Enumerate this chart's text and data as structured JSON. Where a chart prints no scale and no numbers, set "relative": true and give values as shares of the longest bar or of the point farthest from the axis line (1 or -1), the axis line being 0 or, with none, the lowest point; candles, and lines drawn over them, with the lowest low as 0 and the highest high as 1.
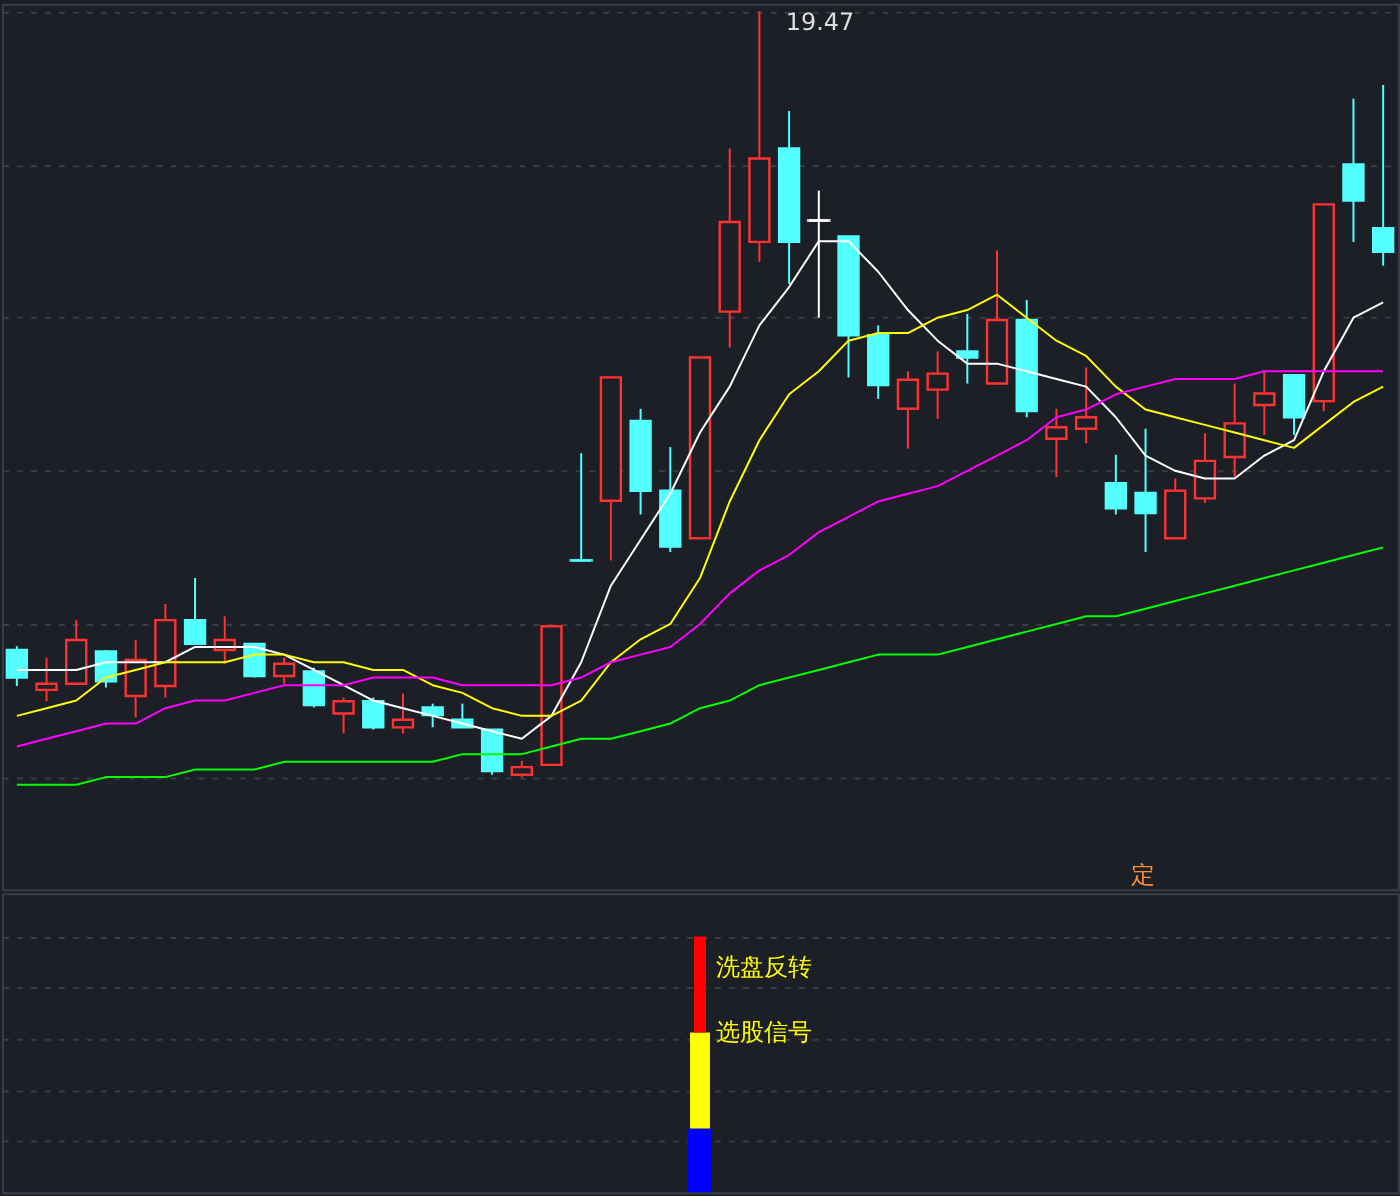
{
  "chart_data": [
    {
      "type": "candlestick",
      "relative": true,
      "grid": true,
      "categories": [
        null,
        null,
        null,
        null,
        null,
        null,
        null,
        null,
        null,
        null,
        null,
        null,
        null,
        null,
        null,
        null,
        null,
        null,
        null,
        null,
        null,
        null,
        null,
        null,
        null,
        null,
        null,
        null,
        null,
        null,
        null,
        null,
        null,
        null,
        null,
        null,
        null,
        null,
        null,
        null,
        null,
        null,
        null,
        null,
        null,
        null,
        null
      ],
      "ohlc": [
        [
          0.166,
          0.171,
          0.119,
          0.13
        ],
        [
          0.114,
          0.156,
          0.099,
          0.122
        ],
        [
          0.122,
          0.205,
          0.122,
          0.179
        ],
        [
          0.164,
          0.166,
          0.117,
          0.125
        ],
        [
          0.106,
          0.179,
          0.078,
          0.153
        ],
        [
          0.119,
          0.226,
          0.104,
          0.205
        ],
        [
          0.205,
          0.26,
          0.174,
          0.174
        ],
        [
          0.166,
          0.21,
          0.148,
          0.179
        ],
        [
          0.174,
          0.174,
          0.13,
          0.132
        ],
        [
          0.132,
          0.156,
          0.122,
          0.148
        ],
        [
          0.138,
          0.143,
          0.091,
          0.094
        ],
        [
          0.083,
          0.104,
          0.057,
          0.099
        ],
        [
          0.099,
          0.104,
          0.062,
          0.065
        ],
        [
          0.065,
          0.109,
          0.057,
          0.075
        ],
        [
          0.091,
          0.096,
          0.065,
          0.081
        ],
        [
          0.075,
          0.096,
          0.065,
          0.065
        ],
        [
          0.062,
          0.062,
          0.003,
          0.008
        ],
        [
          0.003,
          0.021,
          0,
          0.013
        ],
        [
          0.016,
          0.197,
          0.016,
          0.197
        ],
        [
          0.283,
          0.423,
          0.283,
          0.283
        ],
        [
          0.361,
          0.522,
          0.283,
          0.522
        ],
        [
          0.465,
          0.481,
          0.343,
          0.374
        ],
        [
          0.374,
          0.431,
          0.294,
          0.301
        ],
        [
          0.312,
          0.548,
          0.312,
          0.548
        ],
        [
          0.608,
          0.821,
          0.561,
          0.725
        ],
        [
          0.699,
          1,
          0.673,
          0.808
        ],
        [
          0.821,
          0.87,
          0.644,
          0.699
        ],
        [
          0.727,
          0.766,
          0.6,
          0.727
        ],
        [
          0.706,
          0.706,
          0.522,
          0.577
        ],
        [
          0.577,
          0.59,
          0.494,
          0.512
        ],
        [
          0.481,
          0.53,
          0.429,
          0.519
        ],
        [
          0.506,
          0.556,
          0.468,
          0.527
        ],
        [
          0.556,
          0.605,
          0.514,
          0.548
        ],
        [
          0.514,
          0.688,
          0.514,
          0.597
        ],
        [
          0.597,
          0.623,
          0.47,
          0.478
        ],
        [
          0.442,
          0.481,
          0.392,
          0.457
        ],
        [
          0.455,
          0.535,
          0.436,
          0.47
        ],
        [
          0.384,
          0.421,
          0.343,
          0.351
        ],
        [
          0.371,
          0.455,
          0.294,
          0.345
        ],
        [
          0.312,
          0.39,
          0.312,
          0.374
        ],
        [
          0.364,
          0.449,
          0.358,
          0.413
        ],
        [
          0.418,
          0.514,
          0.392,
          0.462
        ],
        [
          0.486,
          0.532,
          0.447,
          0.501
        ],
        [
          0.525,
          0.525,
          0.447,
          0.47
        ],
        [
          0.491,
          0.748,
          0.478,
          0.748
        ],
        [
          0.8,
          0.886,
          0.699,
          0.753
        ],
        [
          0.717,
          0.904,
          0.668,
          0.686
        ]
      ],
      "colors": [
        "#54ffff",
        "#ff3232",
        "#ff3232",
        "#54ffff",
        "#ff3232",
        "#ff3232",
        "#54ffff",
        "#ff3232",
        "#54ffff",
        "#ff3232",
        "#54ffff",
        "#ff3232",
        "#54ffff",
        "#ff3232",
        "#54ffff",
        "#54ffff",
        "#54ffff",
        "#ff3232",
        "#ff3232",
        "#54ffff",
        "#ff3232",
        "#54ffff",
        "#54ffff",
        "#ff3232",
        "#ff3232",
        "#ff3232",
        "#54ffff",
        "#ffffff",
        "#54ffff",
        "#54ffff",
        "#ff3232",
        "#ff3232",
        "#54ffff",
        "#ff3232",
        "#54ffff",
        "#ff3232",
        "#ff3232",
        "#54ffff",
        "#54ffff",
        "#ff3232",
        "#ff3232",
        "#ff3232",
        "#ff3232",
        "#54ffff",
        "#ff3232",
        "#54ffff",
        "#54ffff"
      ],
      "series": [
        {
          "type": "line",
          "color": "#ffffff",
          "values": [
            0.14,
            0.14,
            0.14,
            0.15,
            0.15,
            0.15,
            0.17,
            0.17,
            0.17,
            0.16,
            0.14,
            0.12,
            0.1,
            0.09,
            0.08,
            0.07,
            0.06,
            0.05,
            0.08,
            0.15,
            0.25,
            0.31,
            0.37,
            0.45,
            0.51,
            0.59,
            0.64,
            0.7,
            0.7,
            0.66,
            0.61,
            0.57,
            0.54,
            0.54,
            0.53,
            0.52,
            0.51,
            0.47,
            0.42,
            0.4,
            0.39,
            0.39,
            0.42,
            0.44,
            0.53,
            0.6,
            0.62
          ]
        },
        {
          "type": "line",
          "color": "#ffff00",
          "values": [
            0.08,
            0.09,
            0.1,
            0.13,
            0.14,
            0.15,
            0.15,
            0.15,
            0.16,
            0.16,
            0.15,
            0.15,
            0.14,
            0.14,
            0.12,
            0.11,
            0.09,
            0.08,
            0.08,
            0.1,
            0.15,
            0.18,
            0.2,
            0.26,
            0.36,
            0.44,
            0.5,
            0.53,
            0.57,
            0.58,
            0.58,
            0.6,
            0.61,
            0.63,
            0.6,
            0.57,
            0.55,
            0.51,
            0.48,
            0.47,
            0.46,
            0.45,
            0.44,
            0.43,
            0.46,
            0.49,
            0.51
          ]
        },
        {
          "type": "line",
          "color": "#ff00ff",
          "values": [
            0.04,
            0.05,
            0.06,
            0.07,
            0.07,
            0.09,
            0.1,
            0.1,
            0.11,
            0.12,
            0.12,
            0.12,
            0.13,
            0.13,
            0.13,
            0.12,
            0.12,
            0.12,
            0.12,
            0.13,
            0.15,
            0.16,
            0.17,
            0.2,
            0.24,
            0.27,
            0.29,
            0.32,
            0.34,
            0.36,
            0.37,
            0.38,
            0.4,
            0.42,
            0.44,
            0.47,
            0.48,
            0.5,
            0.51,
            0.52,
            0.52,
            0.52,
            0.53,
            0.53,
            0.53,
            0.53,
            0.53
          ]
        },
        {
          "type": "line",
          "color": "#00ff00",
          "values": [
            -0.01,
            -0.01,
            -0.01,
            0.0,
            0.0,
            0.0,
            0.01,
            0.01,
            0.01,
            0.02,
            0.02,
            0.02,
            0.02,
            0.02,
            0.02,
            0.03,
            0.03,
            0.03,
            0.04,
            0.05,
            0.05,
            0.06,
            0.07,
            0.09,
            0.1,
            0.12,
            0.13,
            0.14,
            0.15,
            0.16,
            0.16,
            0.16,
            0.17,
            0.18,
            0.19,
            0.2,
            0.21,
            0.21,
            0.22,
            0.23,
            0.24,
            0.25,
            0.26,
            0.27,
            0.28,
            0.29,
            0.3
          ]
        }
      ],
      "annotations": [
        "19.47",
        "定"
      ]
    },
    {
      "type": "bar",
      "relative": true,
      "stacked": true,
      "grid": true,
      "categories": [
        null,
        null,
        null,
        null,
        null,
        null,
        null,
        null,
        null,
        null,
        null,
        null,
        null,
        null,
        null,
        null,
        null,
        null,
        null,
        null,
        null,
        null,
        null,
        null,
        null,
        null,
        null,
        null,
        null,
        null,
        null,
        null,
        null,
        null,
        null,
        null,
        null,
        null,
        null,
        null,
        null,
        null,
        null,
        null,
        null,
        null,
        null
      ],
      "series": [
        {
          "color": "#0000ff",
          "values": [
            null,
            null,
            null,
            null,
            null,
            null,
            null,
            null,
            null,
            null,
            null,
            null,
            null,
            null,
            null,
            null,
            null,
            null,
            null,
            null,
            null,
            null,
            null,
            0.25,
            null,
            null,
            null,
            null,
            null,
            null,
            null,
            null,
            null,
            null,
            null,
            null,
            null,
            null,
            null,
            null,
            null,
            null,
            null,
            null,
            null,
            null,
            null
          ]
        },
        {
          "name": "选股信号",
          "color": "#ffff00",
          "values": [
            null,
            null,
            null,
            null,
            null,
            null,
            null,
            null,
            null,
            null,
            null,
            null,
            null,
            null,
            null,
            null,
            null,
            null,
            null,
            null,
            null,
            null,
            null,
            0.375,
            null,
            null,
            null,
            null,
            null,
            null,
            null,
            null,
            null,
            null,
            null,
            null,
            null,
            null,
            null,
            null,
            null,
            null,
            null,
            null,
            null,
            null,
            null
          ]
        },
        {
          "name": "洗盘反转",
          "color": "#ff0000",
          "values": [
            null,
            null,
            null,
            null,
            null,
            null,
            null,
            null,
            null,
            null,
            null,
            null,
            null,
            null,
            null,
            null,
            null,
            null,
            null,
            null,
            null,
            null,
            null,
            0.375,
            null,
            null,
            null,
            null,
            null,
            null,
            null,
            null,
            null,
            null,
            null,
            null,
            null,
            null,
            null,
            null,
            null,
            null,
            null,
            null,
            null,
            null,
            null
          ]
        }
      ]
    }
  ]
}
